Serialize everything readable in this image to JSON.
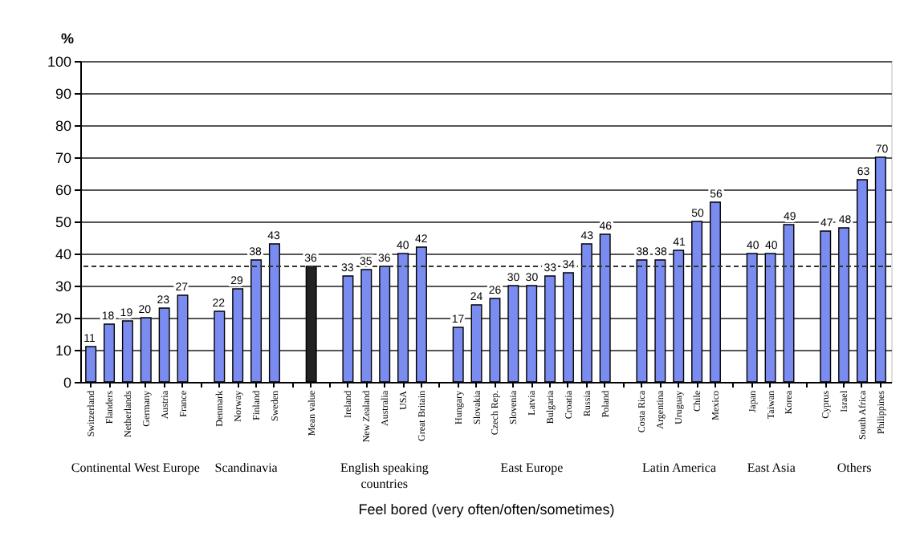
{
  "chart_data": {
    "type": "bar",
    "xlabel": "Feel bored (very often/often/sometimes)",
    "ylabel": "%",
    "categories": [
      "Switzerland",
      "Flanders",
      "Netherlands",
      "Germany",
      "Austria",
      "France",
      null,
      "Denmark",
      "Norway",
      "Finland",
      "Sweden",
      null,
      "Mean value",
      null,
      "Ireland",
      "New Zealand",
      "Australia",
      "USA",
      "Great Britain",
      null,
      "Hungary",
      "Slovakia",
      "Czech Rep.",
      "Slovenia",
      "Latvia",
      "Bulgaria",
      "Croatia",
      "Russia",
      "Poland",
      null,
      "Costa Rica",
      "Argentina",
      "Uruguay",
      "Chile",
      "Mexico",
      null,
      "Japan",
      "Taiwan",
      "Korea",
      null,
      "Cyprus",
      "Israel",
      "South Africa",
      "Philippines"
    ],
    "values": [
      11,
      18,
      19,
      20,
      23,
      27,
      null,
      22,
      29,
      38,
      43,
      null,
      36,
      null,
      33,
      35,
      36,
      40,
      42,
      null,
      17,
      24,
      26,
      30,
      30,
      33,
      34,
      43,
      46,
      null,
      38,
      38,
      41,
      50,
      56,
      null,
      40,
      40,
      49,
      null,
      47,
      48,
      63,
      70
    ],
    "colors": [
      "#7b8cf0",
      "#7b8cf0",
      "#7b8cf0",
      "#7b8cf0",
      "#7b8cf0",
      "#7b8cf0",
      null,
      "#7b8cf0",
      "#7b8cf0",
      "#7b8cf0",
      "#7b8cf0",
      null,
      "#222222",
      null,
      "#7b8cf0",
      "#7b8cf0",
      "#7b8cf0",
      "#7b8cf0",
      "#7b8cf0",
      null,
      "#7b8cf0",
      "#7b8cf0",
      "#7b8cf0",
      "#7b8cf0",
      "#7b8cf0",
      "#7b8cf0",
      "#7b8cf0",
      "#7b8cf0",
      "#7b8cf0",
      null,
      "#7b8cf0",
      "#7b8cf0",
      "#7b8cf0",
      "#7b8cf0",
      "#7b8cf0",
      null,
      "#7b8cf0",
      "#7b8cf0",
      "#7b8cf0",
      null,
      "#7b8cf0",
      "#7b8cf0",
      "#7b8cf0",
      "#7b8cf0"
    ],
    "annotations": [
      "Continental West Europe",
      "Scandinavia",
      "English speaking\ncountries",
      "East Europe",
      "Latin America",
      "East Asia",
      "Others"
    ],
    "ref_lines": [
      {
        "axis": "y",
        "value": 36,
        "line_style": "dashed",
        "color": "#333333"
      }
    ],
    "ylim": [
      0,
      100
    ],
    "yticks": [
      0,
      10,
      20,
      30,
      40,
      50,
      60,
      70,
      80,
      90,
      100
    ],
    "grid": "y",
    "data_labels": true
  }
}
